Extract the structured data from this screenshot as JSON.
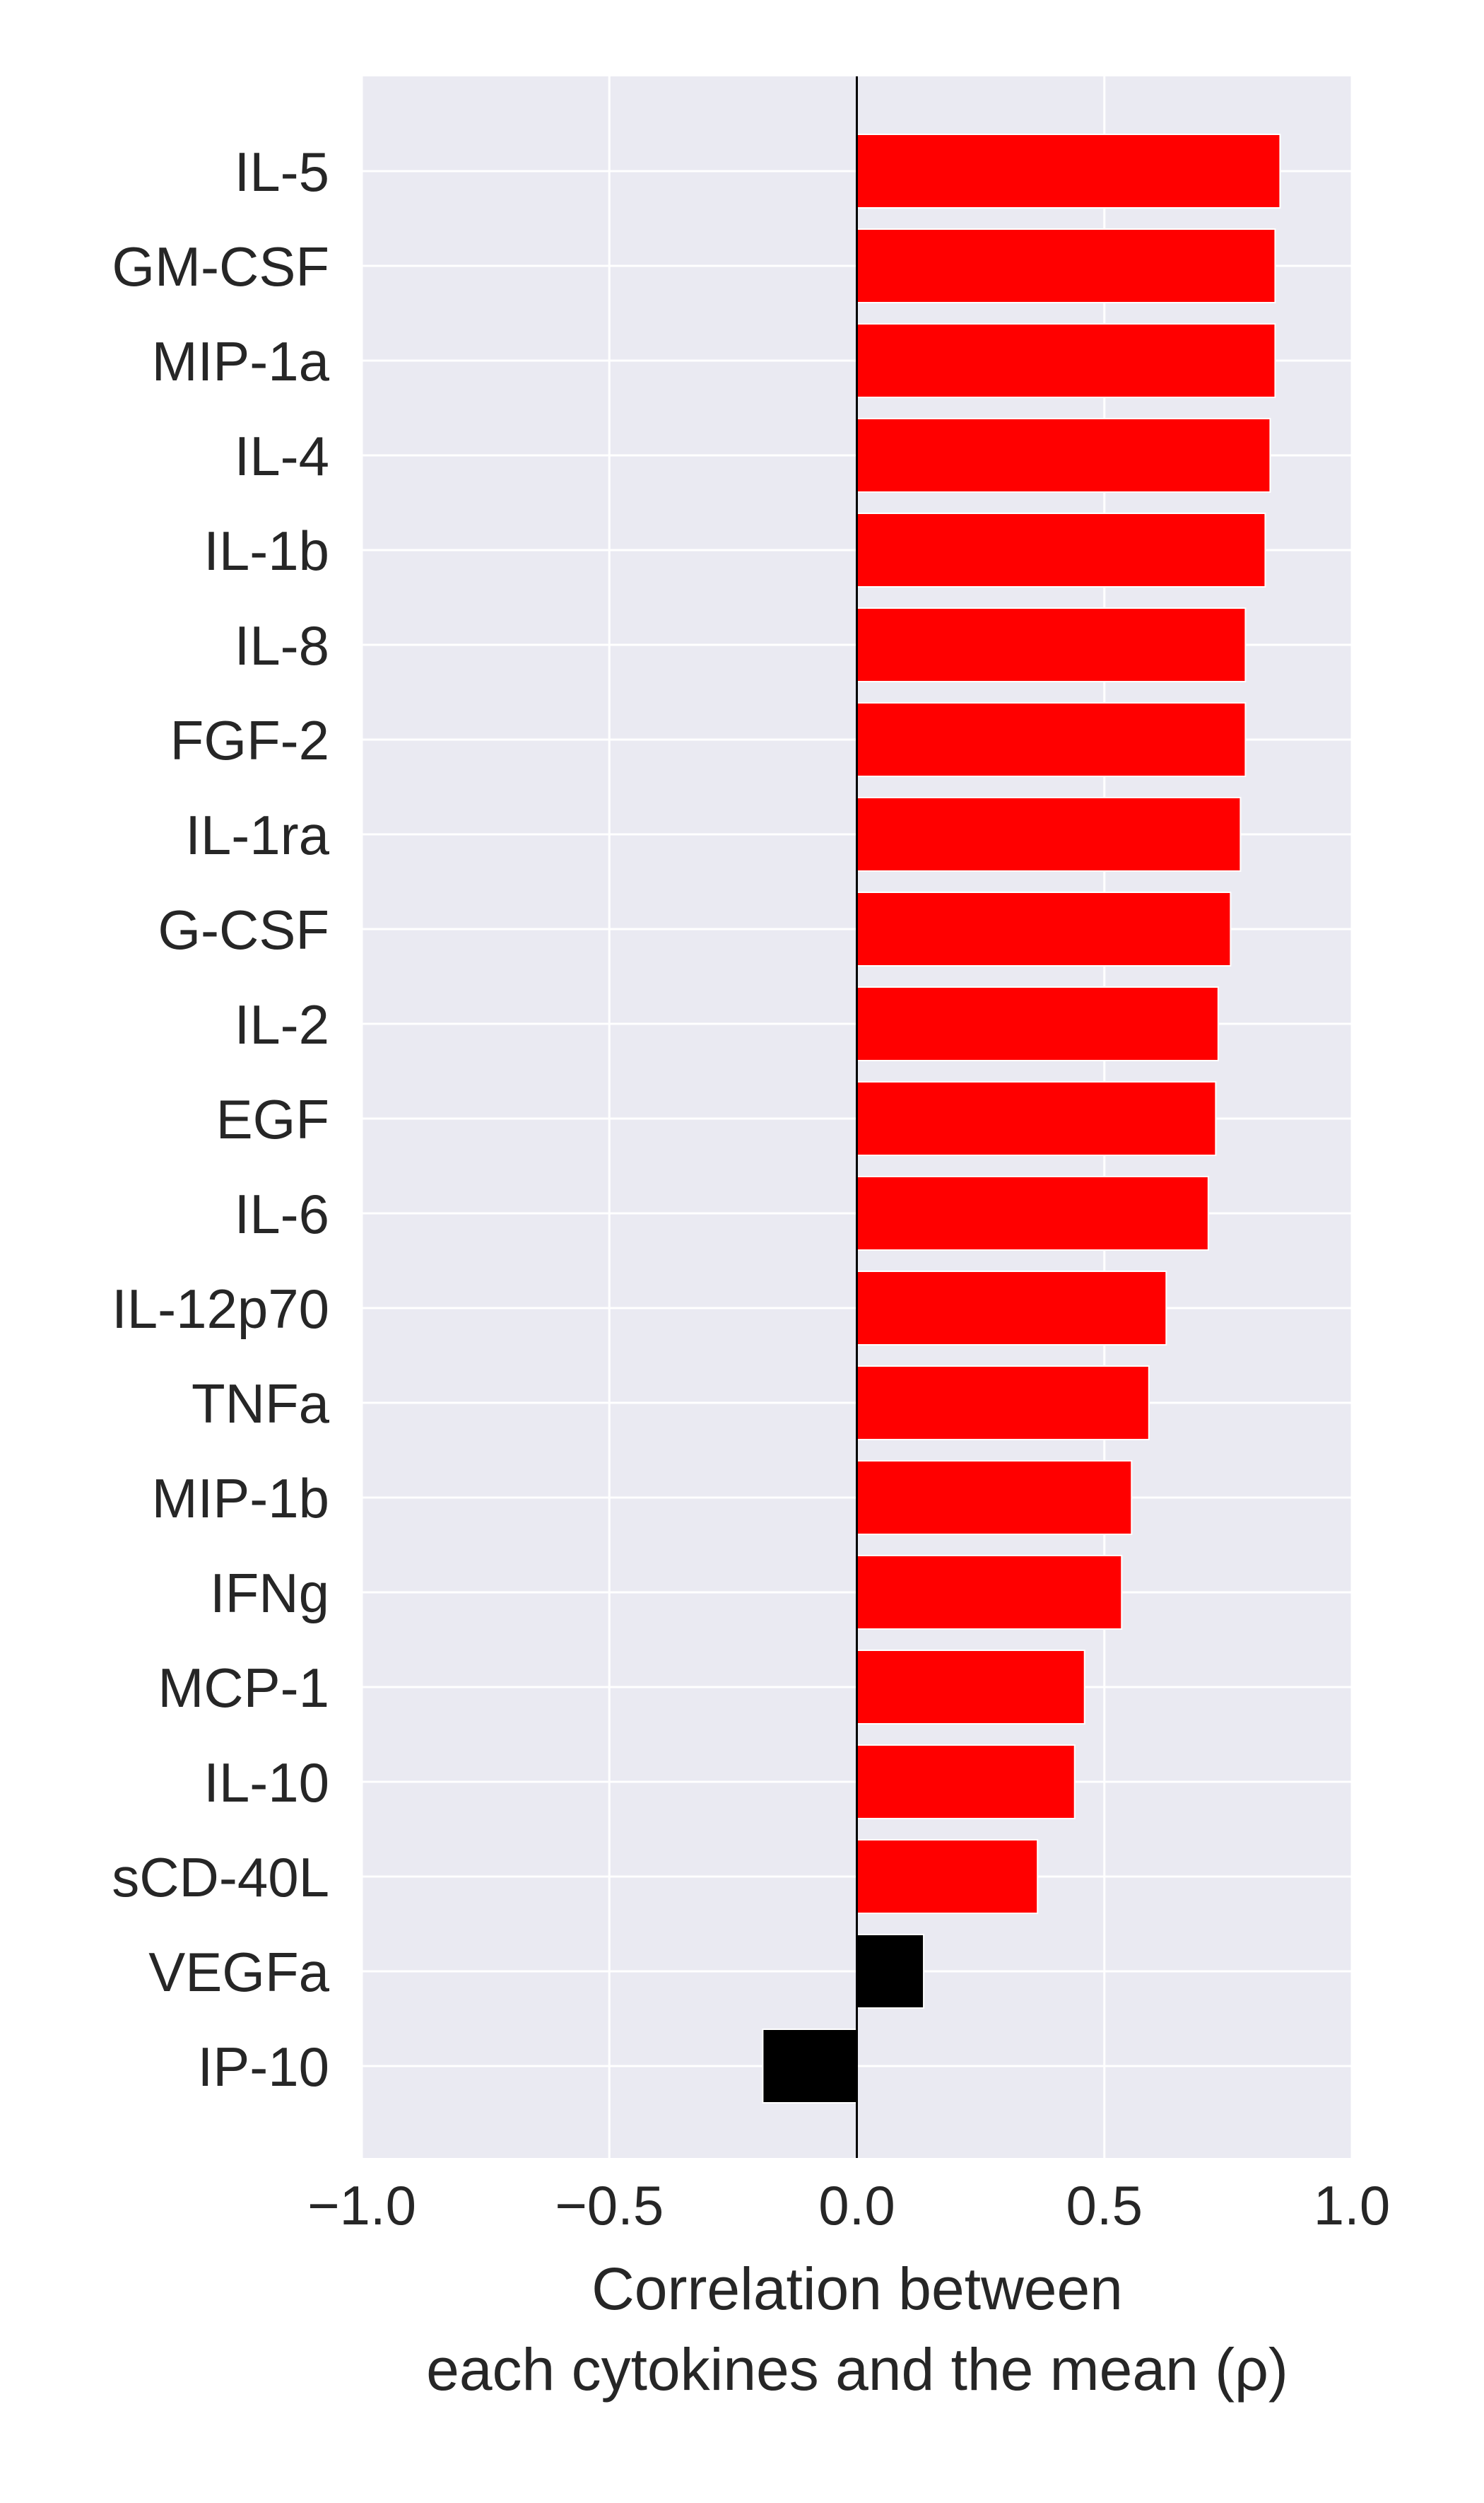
{
  "chart_data": {
    "type": "bar",
    "orientation": "horizontal",
    "categories": [
      "IL-5",
      "GM-CSF",
      "MIP-1a",
      "IL-4",
      "IL-1b",
      "IL-8",
      "FGF-2",
      "IL-1ra",
      "G-CSF",
      "IL-2",
      "EGF",
      "IL-6",
      "IL-12p70",
      "TNFa",
      "MIP-1b",
      "IFNg",
      "MCP-1",
      "IL-10",
      "sCD-40L",
      "VEGFa",
      "IP-10"
    ],
    "values": [
      0.855,
      0.845,
      0.845,
      0.835,
      0.825,
      0.785,
      0.785,
      0.775,
      0.755,
      0.73,
      0.725,
      0.71,
      0.625,
      0.59,
      0.555,
      0.535,
      0.46,
      0.44,
      0.365,
      0.135,
      -0.19
    ],
    "bar_colors": [
      "#ff0000",
      "#ff0000",
      "#ff0000",
      "#ff0000",
      "#ff0000",
      "#ff0000",
      "#ff0000",
      "#ff0000",
      "#ff0000",
      "#ff0000",
      "#ff0000",
      "#ff0000",
      "#ff0000",
      "#ff0000",
      "#ff0000",
      "#ff0000",
      "#ff0000",
      "#ff0000",
      "#ff0000",
      "#000000",
      "#000000"
    ],
    "xlim": [
      -1.0,
      1.0
    ],
    "xticks": [
      -1.0,
      -0.5,
      0.0,
      0.5,
      1.0
    ],
    "xtick_labels": [
      "−1.0",
      "−0.5",
      "0.0",
      "0.5",
      "1.0"
    ],
    "xlabel_lines": [
      "Correlation between",
      "each cytokines and the mean (ρ)"
    ],
    "grid": true,
    "zero_line": true,
    "style": {
      "plot_background": "#eaeaf2",
      "grid_color": "#ffffff",
      "text_color": "#262626",
      "zero_line_color": "#000000"
    }
  }
}
